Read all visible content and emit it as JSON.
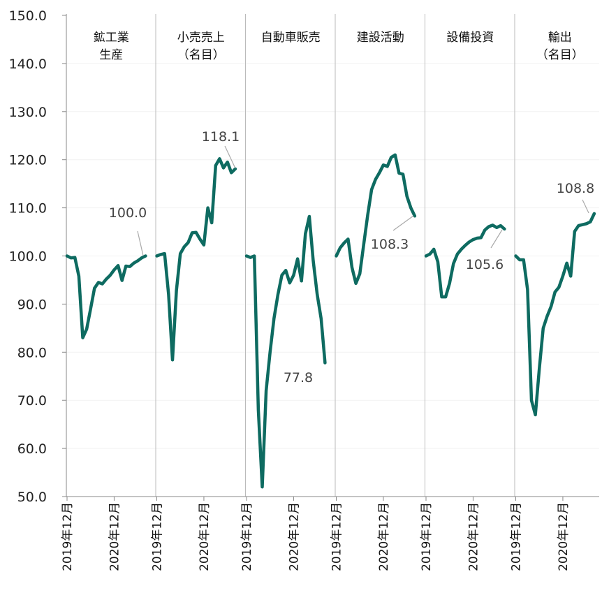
{
  "chart_data": {
    "type": "line",
    "ylim": [
      50,
      150
    ],
    "y_ticks": [
      "150.0",
      "140.0",
      "130.0",
      "120.0",
      "110.0",
      "100.0",
      "90.0",
      "80.0",
      "70.0",
      "60.0",
      "50.0"
    ],
    "x_tick_labels": [
      "2019年12月",
      "2020年12月"
    ],
    "grid": false,
    "line_color": "#0e6b61",
    "panels": [
      {
        "title_lines": [
          "鉱工業",
          "生産"
        ],
        "end_label": "100.0",
        "values": [
          100.0,
          99.6,
          99.7,
          95.8,
          83.0,
          84.8,
          89.0,
          93.3,
          94.5,
          94.2,
          95.2,
          96.0,
          97.1,
          98.0,
          94.9,
          97.9,
          97.8,
          98.5,
          99.0,
          99.6,
          100.0
        ]
      },
      {
        "title_lines": [
          "小売売上",
          "（名目）"
        ],
        "end_label": "118.1",
        "values": [
          100.0,
          100.3,
          100.5,
          92.0,
          78.4,
          92.8,
          100.5,
          101.9,
          102.8,
          104.8,
          104.9,
          103.5,
          102.3,
          110.0,
          106.9,
          118.8,
          120.2,
          118.3,
          119.5,
          117.3,
          118.1
        ]
      },
      {
        "title_lines": [
          "自動車販売"
        ],
        "end_label": "77.8",
        "values": [
          100.0,
          99.7,
          100.0,
          68.0,
          52.0,
          72.0,
          80.0,
          87.0,
          92.0,
          96.0,
          97.0,
          94.4,
          96.0,
          99.4,
          94.8,
          104.6,
          108.2,
          99.0,
          92.0,
          87.0,
          77.8
        ]
      },
      {
        "title_lines": [
          "建設活動"
        ],
        "end_label": "108.3",
        "values": [
          100.0,
          101.7,
          102.7,
          103.5,
          97.6,
          94.3,
          96.3,
          102.4,
          108.5,
          113.8,
          115.9,
          117.3,
          118.9,
          118.6,
          120.5,
          121.0,
          117.2,
          117.0,
          112.4,
          110.0,
          108.3
        ]
      },
      {
        "title_lines": [
          "設備投資"
        ],
        "end_label": "105.6",
        "values": [
          100.0,
          100.4,
          101.4,
          98.8,
          91.5,
          91.5,
          94.3,
          98.4,
          100.4,
          101.4,
          102.2,
          102.9,
          103.4,
          103.7,
          103.8,
          105.4,
          106.1,
          106.4,
          105.9,
          106.3,
          105.6
        ]
      },
      {
        "title_lines": [
          "輸出",
          "（名目）"
        ],
        "end_label": "108.8",
        "values": [
          100.0,
          99.2,
          99.2,
          93.0,
          70.0,
          67.0,
          76.5,
          85.0,
          87.5,
          89.5,
          92.5,
          93.5,
          95.8,
          98.5,
          95.8,
          105.1,
          106.3,
          106.5,
          106.7,
          107.1,
          108.8
        ]
      }
    ]
  }
}
